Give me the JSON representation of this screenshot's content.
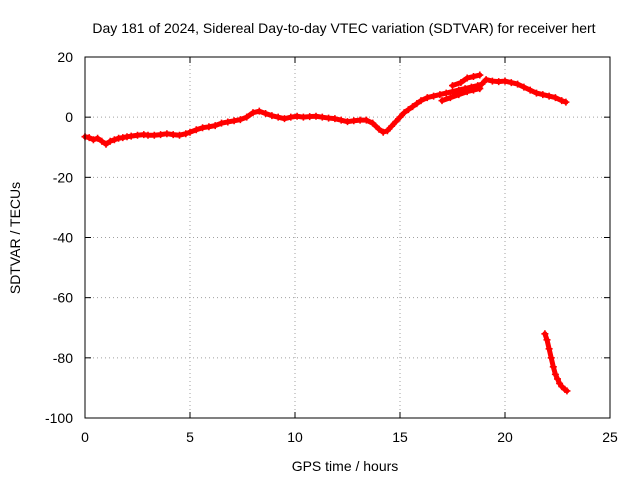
{
  "chart_data": {
    "type": "scatter",
    "title": "Day 181 of 2024, Sidereal Day-to-day VTEC variation (SDTVAR) for receiver hert",
    "xlabel": "GPS time / hours",
    "ylabel": "SDTVAR / TECUs",
    "xlim": [
      0,
      25
    ],
    "ylim": [
      -100,
      20
    ],
    "xticks": [
      0,
      5,
      10,
      15,
      20,
      25
    ],
    "yticks": [
      -100,
      -80,
      -60,
      -40,
      -20,
      0,
      20
    ],
    "grid": true,
    "marker": "+",
    "series": [
      {
        "color": "#ff0000",
        "points": [
          [
            0.0,
            -6.5
          ],
          [
            0.2,
            -6.8
          ],
          [
            0.4,
            -7.5
          ],
          [
            0.6,
            -7.0
          ],
          [
            0.8,
            -8.0
          ],
          [
            1.0,
            -9.0
          ],
          [
            1.2,
            -8.0
          ],
          [
            1.4,
            -7.5
          ],
          [
            1.6,
            -7.0
          ],
          [
            1.8,
            -6.8
          ],
          [
            2.0,
            -6.5
          ],
          [
            2.2,
            -6.3
          ],
          [
            2.5,
            -6.0
          ],
          [
            2.8,
            -5.8
          ],
          [
            3.0,
            -6.0
          ],
          [
            3.3,
            -6.0
          ],
          [
            3.6,
            -5.8
          ],
          [
            3.9,
            -5.5
          ],
          [
            4.2,
            -5.8
          ],
          [
            4.5,
            -6.0
          ],
          [
            4.8,
            -5.5
          ],
          [
            5.0,
            -5.0
          ],
          [
            5.3,
            -4.2
          ],
          [
            5.6,
            -3.5
          ],
          [
            5.9,
            -3.2
          ],
          [
            6.2,
            -2.8
          ],
          [
            6.5,
            -2.0
          ],
          [
            6.8,
            -1.6
          ],
          [
            7.1,
            -1.2
          ],
          [
            7.4,
            -0.8
          ],
          [
            7.7,
            0.0
          ],
          [
            8.0,
            1.5
          ],
          [
            8.3,
            2.0
          ],
          [
            8.6,
            1.2
          ],
          [
            8.9,
            0.5
          ],
          [
            9.2,
            0.0
          ],
          [
            9.5,
            -0.5
          ],
          [
            9.8,
            0.0
          ],
          [
            10.1,
            0.3
          ],
          [
            10.4,
            0.0
          ],
          [
            10.7,
            0.2
          ],
          [
            11.0,
            0.3
          ],
          [
            11.3,
            0.0
          ],
          [
            11.6,
            -0.3
          ],
          [
            11.9,
            -0.5
          ],
          [
            12.2,
            -1.0
          ],
          [
            12.5,
            -1.5
          ],
          [
            12.8,
            -1.2
          ],
          [
            13.1,
            -1.0
          ],
          [
            13.4,
            -1.0
          ],
          [
            13.7,
            -2.0
          ],
          [
            14.0,
            -4.0
          ],
          [
            14.2,
            -5.0
          ],
          [
            14.4,
            -4.5
          ],
          [
            14.6,
            -3.0
          ],
          [
            14.8,
            -1.5
          ],
          [
            15.0,
            0.0
          ],
          [
            15.2,
            1.5
          ],
          [
            15.4,
            2.5
          ],
          [
            15.6,
            3.5
          ],
          [
            15.8,
            4.5
          ],
          [
            16.0,
            5.5
          ],
          [
            16.3,
            6.5
          ],
          [
            16.6,
            7.0
          ],
          [
            16.9,
            7.5
          ],
          [
            17.2,
            8.0
          ],
          [
            17.5,
            8.5
          ],
          [
            17.8,
            9.0
          ],
          [
            18.1,
            9.5
          ],
          [
            18.4,
            10.0
          ],
          [
            18.7,
            10.5
          ],
          [
            18.9,
            11.0
          ],
          [
            19.1,
            12.5
          ],
          [
            19.4,
            12.0
          ],
          [
            19.7,
            11.8
          ],
          [
            20.0,
            12.0
          ],
          [
            20.3,
            11.5
          ],
          [
            20.6,
            11.0
          ],
          [
            20.9,
            10.0
          ],
          [
            21.2,
            9.0
          ],
          [
            21.5,
            8.0
          ],
          [
            21.8,
            7.5
          ],
          [
            22.1,
            7.0
          ],
          [
            22.4,
            6.5
          ],
          [
            22.7,
            5.5
          ],
          [
            22.9,
            5.0
          ],
          [
            17.0,
            5.5
          ],
          [
            17.4,
            6.5
          ],
          [
            17.8,
            7.5
          ],
          [
            18.2,
            8.5
          ],
          [
            18.5,
            9.0
          ],
          [
            18.8,
            9.5
          ],
          [
            17.5,
            10.5
          ],
          [
            17.9,
            11.5
          ],
          [
            18.2,
            13.0
          ],
          [
            18.5,
            13.5
          ],
          [
            18.8,
            14.0
          ],
          [
            21.9,
            -72.0
          ],
          [
            22.0,
            -74.0
          ],
          [
            22.1,
            -77.0
          ],
          [
            22.2,
            -80.0
          ],
          [
            22.3,
            -83.0
          ],
          [
            22.4,
            -85.5
          ],
          [
            22.5,
            -87.0
          ],
          [
            22.6,
            -88.5
          ],
          [
            22.7,
            -89.5
          ],
          [
            22.85,
            -90.5
          ],
          [
            22.95,
            -91.0
          ]
        ]
      }
    ]
  }
}
